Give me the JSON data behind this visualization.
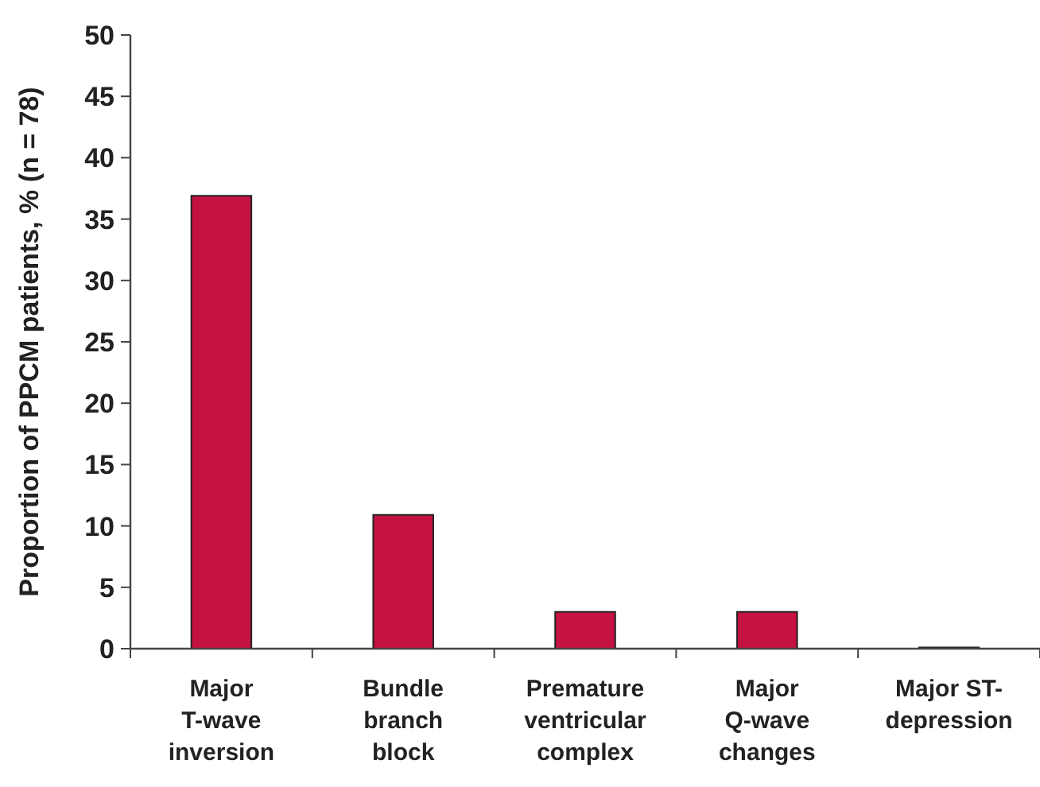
{
  "chart_data": {
    "type": "bar",
    "ylabel": "Proportion of PPCM patients, % (n = 78)",
    "categories": [
      "Major\nT-wave\ninversion",
      "Bundle\nbranch\nblock",
      "Premature\nventricular\ncomplex",
      "Major\nQ-wave\nchanges",
      "Major ST-\ndepression"
    ],
    "values": [
      36.9,
      10.9,
      3.0,
      3.0,
      0.1
    ],
    "color": "#c41241",
    "ylim": [
      0,
      50
    ],
    "yticks": [
      0,
      5,
      10,
      15,
      20,
      25,
      30,
      35,
      40,
      45,
      50
    ],
    "grid": false
  }
}
